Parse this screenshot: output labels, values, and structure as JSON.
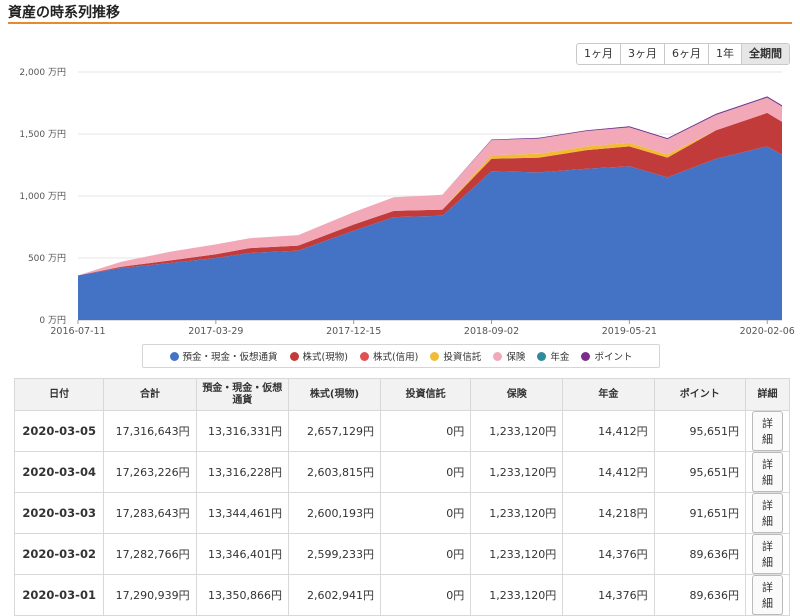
{
  "page": {
    "title": "資産の時系列推移"
  },
  "range_buttons": [
    {
      "label": "1ヶ月",
      "active": false
    },
    {
      "label": "3ヶ月",
      "active": false
    },
    {
      "label": "6ヶ月",
      "active": false
    },
    {
      "label": "1年",
      "active": false
    },
    {
      "label": "全期間",
      "active": true
    }
  ],
  "legend": [
    {
      "label": "預金・現金・仮想通貨",
      "color": "#4472c4"
    },
    {
      "label": "株式(現物)",
      "color": "#c23b3b"
    },
    {
      "label": "株式(信用)",
      "color": "#e05050"
    },
    {
      "label": "投資信託",
      "color": "#f2bb35"
    },
    {
      "label": "保険",
      "color": "#f3a8b8"
    },
    {
      "label": "年金",
      "color": "#2e8b9a"
    },
    {
      "label": "ポイント",
      "color": "#7b2d8b"
    }
  ],
  "chart_data": {
    "type": "area",
    "stacked": true,
    "y_unit": "万円",
    "ylim": [
      0,
      2000
    ],
    "y_ticks": [
      "0 万円",
      "500 万円",
      "1,000 万円",
      "1,500 万円",
      "2,000 万円"
    ],
    "x_ticks": [
      "2016-07-11",
      "2017-03-29",
      "2017-12-15",
      "2018-09-02",
      "2019-05-21",
      "2020-02-06"
    ],
    "x": [
      "2016-07-11",
      "2016-10-01",
      "2017-01-01",
      "2017-03-29",
      "2017-06-01",
      "2017-09-01",
      "2017-12-15",
      "2018-03-01",
      "2018-06-01",
      "2018-09-02",
      "2018-12-01",
      "2019-03-01",
      "2019-05-21",
      "2019-08-01",
      "2019-11-01",
      "2020-02-06",
      "2020-03-05"
    ],
    "series": [
      {
        "name": "預金・現金・仮想通貨",
        "values": [
          360,
          420,
          460,
          500,
          540,
          560,
          720,
          830,
          840,
          1200,
          1190,
          1220,
          1240,
          1150,
          1300,
          1400,
          1332
        ]
      },
      {
        "name": "株式(現物)",
        "values": [
          0,
          10,
          20,
          30,
          40,
          40,
          50,
          50,
          50,
          100,
          120,
          150,
          160,
          160,
          230,
          270,
          266
        ]
      },
      {
        "name": "株式(信用)",
        "values": [
          0,
          0,
          0,
          0,
          0,
          0,
          0,
          0,
          0,
          0,
          0,
          0,
          0,
          0,
          0,
          0,
          0
        ]
      },
      {
        "name": "投資信託",
        "values": [
          0,
          0,
          0,
          0,
          0,
          0,
          0,
          0,
          0,
          30,
          30,
          30,
          30,
          25,
          0,
          0,
          0
        ]
      },
      {
        "name": "保険",
        "values": [
          0,
          40,
          70,
          80,
          80,
          85,
          100,
          110,
          120,
          120,
          123,
          123,
          123,
          123,
          123,
          123,
          123
        ]
      },
      {
        "name": "年金",
        "values": [
          0,
          0,
          0,
          0,
          0,
          0,
          0,
          0,
          0,
          1,
          1,
          1,
          1,
          1,
          1,
          1,
          1
        ]
      },
      {
        "name": "ポイント",
        "values": [
          0,
          0,
          0,
          0,
          0,
          0,
          0,
          0,
          0,
          5,
          6,
          7,
          8,
          8,
          9,
          9,
          10
        ]
      }
    ]
  },
  "table": {
    "headers": [
      "日付",
      "合計",
      "預金・現金・仮想通貨",
      "株式(現物)",
      "投資信託",
      "保険",
      "年金",
      "ポイント",
      "詳細"
    ],
    "detail_label": "詳細",
    "rows": [
      [
        "2020-03-05",
        "17,316,643円",
        "13,316,331円",
        "2,657,129円",
        "0円",
        "1,233,120円",
        "14,412円",
        "95,651円"
      ],
      [
        "2020-03-04",
        "17,263,226円",
        "13,316,228円",
        "2,603,815円",
        "0円",
        "1,233,120円",
        "14,412円",
        "95,651円"
      ],
      [
        "2020-03-03",
        "17,283,643円",
        "13,344,461円",
        "2,600,193円",
        "0円",
        "1,233,120円",
        "14,218円",
        "91,651円"
      ],
      [
        "2020-03-02",
        "17,282,766円",
        "13,346,401円",
        "2,599,233円",
        "0円",
        "1,233,120円",
        "14,376円",
        "89,636円"
      ],
      [
        "2020-03-01",
        "17,290,939円",
        "13,350,866円",
        "2,602,941円",
        "0円",
        "1,233,120円",
        "14,376円",
        "89,636円"
      ]
    ]
  }
}
